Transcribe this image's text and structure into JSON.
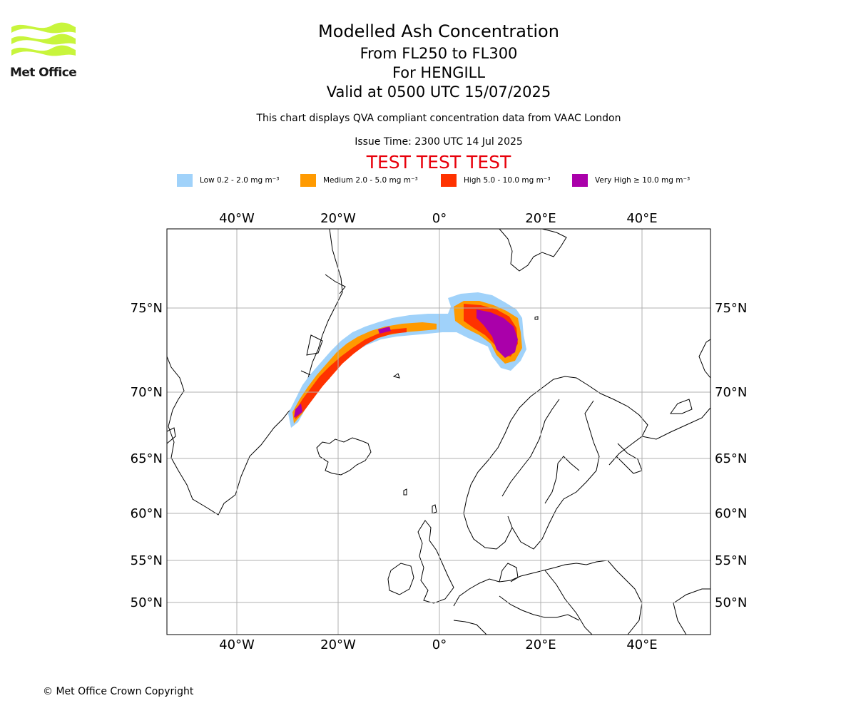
{
  "header": {
    "title": "Modelled Ash Concentration",
    "line1": "From FL250 to FL300",
    "line2": "For HENGILL",
    "line3": "Valid at 0500 UTC 15/07/2025",
    "note": "This chart displays QVA compliant concentration data from VAAC London",
    "issue_time": "Issue Time: 2300 UTC 14 Jul 2025",
    "test_banner": "TEST TEST TEST"
  },
  "logo": {
    "text": "Met Office",
    "color": "#c8f53c"
  },
  "legend": [
    {
      "label": "Low 0.2 - 2.0 mg m⁻³",
      "color": "#a0d2fa"
    },
    {
      "label": "Medium 2.0 - 5.0 mg m⁻³",
      "color": "#ff9a00"
    },
    {
      "label": "High 5.0 - 10.0 mg m⁻³",
      "color": "#ff3200"
    },
    {
      "label": "Very High ≥ 10.0 mg m⁻³",
      "color": "#aa00aa"
    }
  ],
  "map": {
    "lon_ticks": [
      "40°W",
      "20°W",
      "0°",
      "20°E",
      "40°E"
    ],
    "lat_ticks": [
      "75°N",
      "70°N",
      "65°N",
      "60°N",
      "55°N",
      "50°N"
    ],
    "grid": true,
    "gridline_color": "#b0b0b0"
  },
  "footer": {
    "copyright": "© Met Office Crown Copyright"
  }
}
